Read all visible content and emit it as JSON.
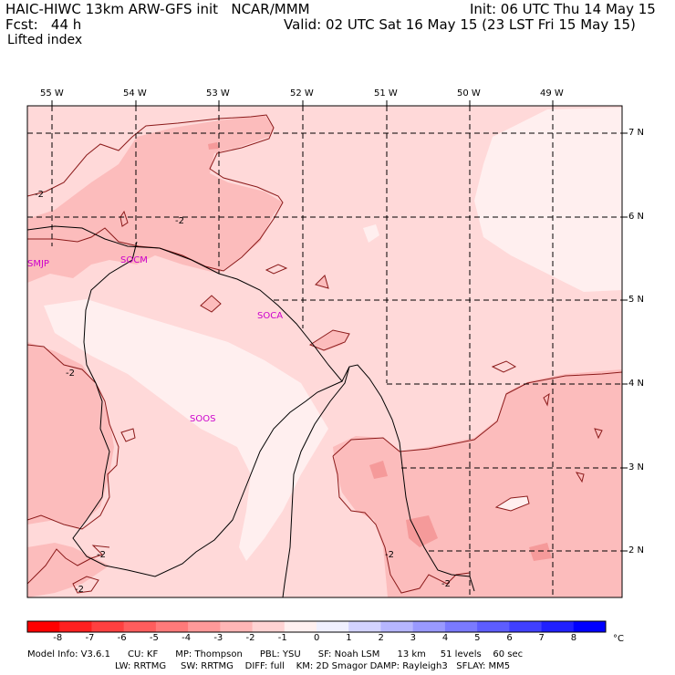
{
  "header": {
    "title_left": "HAIC-HIWC 13km ARW-GFS init   NCAR/MMM",
    "init": "Init: 06 UTC Thu 14 May 15",
    "fcst": "Fcst:   44 h",
    "valid": "Valid: 02 UTC Sat 16 May 15 (23 LST Fri 15 May 15)",
    "field": "Lifted index"
  },
  "map": {
    "lon_labels": [
      "55 W",
      "54 W",
      "53 W",
      "52 W",
      "51 W",
      "50 W",
      "49 W"
    ],
    "lat_labels": [
      "7 N",
      "6 N",
      "5 N",
      "4 N",
      "3 N",
      "2 N"
    ],
    "stations": [
      "SMJP",
      "SOCM",
      "SOCA",
      "SOOS"
    ],
    "contour_value": "-2",
    "colors": {
      "light": "#ffd9d9",
      "palest": "#ffefef",
      "mid": "#fcbcbc",
      "deep": "#f59a9a",
      "contour": "#8b1a1a"
    }
  },
  "colorbar": {
    "unit": "°C",
    "labels": [
      "-8",
      "-7",
      "-6",
      "-5",
      "-4",
      "-3",
      "-2",
      "-1",
      "0",
      "1",
      "2",
      "3",
      "4",
      "5",
      "6",
      "7",
      "8"
    ],
    "colors": [
      "#ff0000",
      "#ff2020",
      "#ff4040",
      "#ff5d5d",
      "#ff7a7a",
      "#ff9999",
      "#ffb6b6",
      "#ffd3d3",
      "#fff0f0",
      "#f0f0ff",
      "#d3d3ff",
      "#b6b6ff",
      "#9999ff",
      "#7a7aff",
      "#5d5dff",
      "#4040ff",
      "#2020ff",
      "#0000ff"
    ]
  },
  "footer": {
    "line1": "Model Info: V3.6.1      CU: KF      MP: Thompson      PBL: YSU      SF: Noah LSM      13 km     51 levels    60 sec",
    "line2": "LW: RRTMG     SW: RRTMG    DIFF: full    KM: 2D Smagor DAMP: Rayleigh3   SFLAY: MM5"
  }
}
